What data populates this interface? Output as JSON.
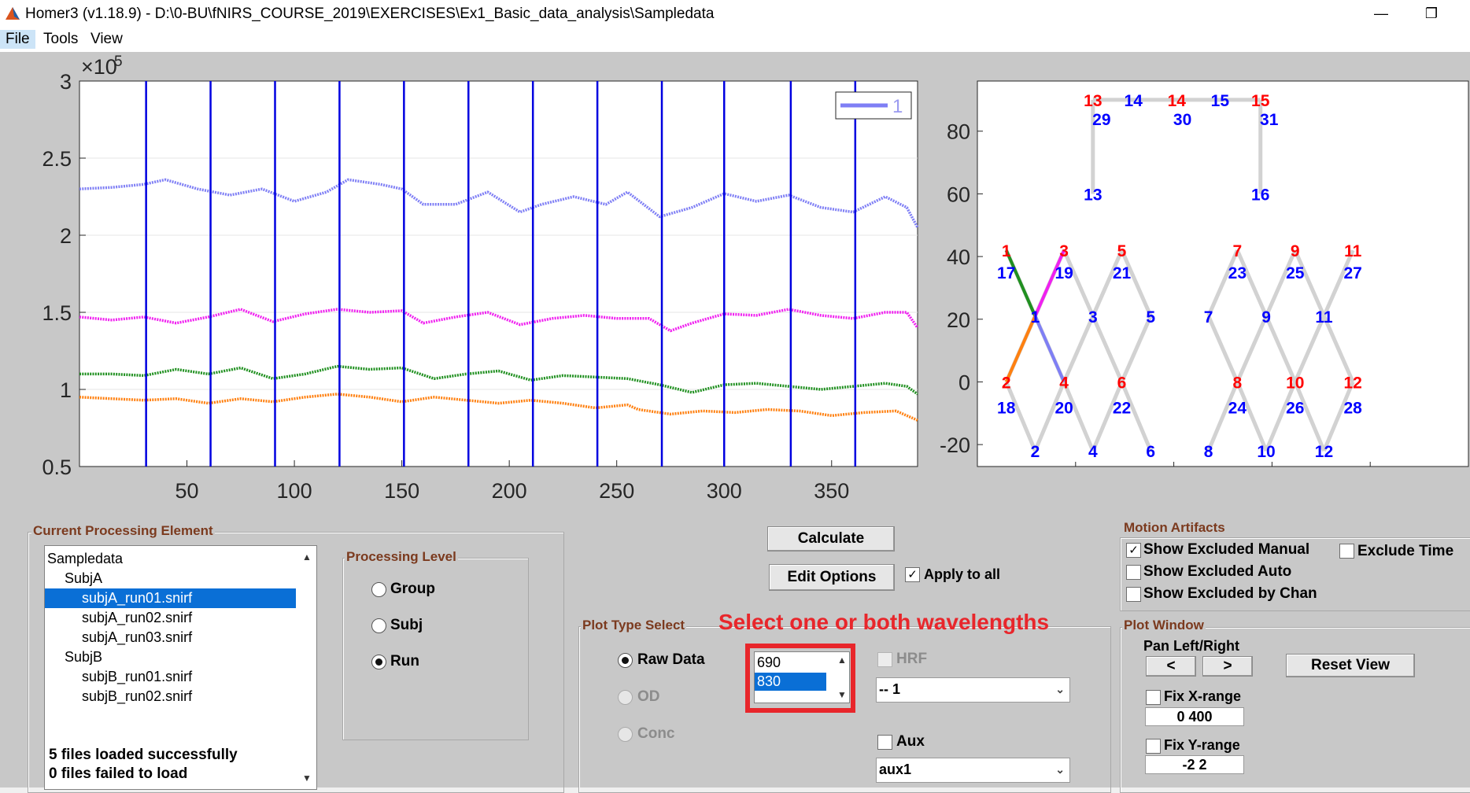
{
  "window": {
    "title": "Homer3 (v1.18.9) - D:\\0-BU\\fNIRS_COURSE_2019\\EXERCISES\\Ex1_Basic_data_analysis\\Sampledata",
    "minimize_icon": "minimize-icon",
    "restore_icon": "restore-icon"
  },
  "menu": {
    "items": [
      "File",
      "Tools",
      "View"
    ]
  },
  "chart_data": [
    {
      "type": "line",
      "title": "",
      "xlabel": "",
      "ylabel": "",
      "exponent_label": "×10",
      "exponent_value": "5",
      "xlim": [
        0,
        390
      ],
      "ylim": [
        0.5,
        3
      ],
      "xticks": [
        50,
        100,
        150,
        200,
        250,
        300,
        350
      ],
      "yticks": [
        0.5,
        1,
        1.5,
        2,
        2.5,
        3
      ],
      "grid": "horizontal",
      "legend": {
        "position": "top-right",
        "entries": [
          "1"
        ]
      },
      "stimulus_markers": [
        31,
        61,
        91,
        121,
        151,
        181,
        211,
        241,
        271,
        300,
        331,
        361
      ],
      "series": [
        {
          "color": "#7f7ff5",
          "x": [
            0,
            15,
            30,
            40,
            55,
            70,
            85,
            100,
            115,
            125,
            140,
            150,
            160,
            175,
            190,
            205,
            215,
            230,
            245,
            255,
            270,
            285,
            300,
            315,
            330,
            345,
            360,
            375,
            385,
            390
          ],
          "values": [
            2.3,
            2.31,
            2.33,
            2.36,
            2.3,
            2.26,
            2.3,
            2.22,
            2.28,
            2.36,
            2.33,
            2.3,
            2.2,
            2.2,
            2.28,
            2.15,
            2.2,
            2.25,
            2.2,
            2.28,
            2.12,
            2.18,
            2.27,
            2.22,
            2.26,
            2.18,
            2.15,
            2.25,
            2.18,
            2.05
          ]
        },
        {
          "color": "#f020f0",
          "x": [
            0,
            15,
            30,
            45,
            60,
            75,
            90,
            105,
            120,
            135,
            150,
            160,
            175,
            190,
            205,
            220,
            235,
            250,
            265,
            275,
            285,
            300,
            315,
            330,
            345,
            360,
            375,
            385,
            390
          ],
          "values": [
            1.47,
            1.45,
            1.47,
            1.43,
            1.47,
            1.52,
            1.44,
            1.49,
            1.52,
            1.5,
            1.51,
            1.43,
            1.47,
            1.5,
            1.42,
            1.46,
            1.48,
            1.46,
            1.46,
            1.38,
            1.43,
            1.49,
            1.48,
            1.52,
            1.48,
            1.46,
            1.5,
            1.5,
            1.4
          ]
        },
        {
          "color": "#209020",
          "x": [
            0,
            15,
            30,
            45,
            60,
            75,
            90,
            105,
            120,
            135,
            150,
            165,
            180,
            195,
            210,
            225,
            240,
            255,
            270,
            285,
            300,
            315,
            330,
            345,
            360,
            375,
            385,
            390
          ],
          "values": [
            1.1,
            1.1,
            1.09,
            1.13,
            1.1,
            1.14,
            1.07,
            1.1,
            1.15,
            1.13,
            1.14,
            1.07,
            1.1,
            1.12,
            1.06,
            1.09,
            1.08,
            1.07,
            1.03,
            0.98,
            1.03,
            1.04,
            1.02,
            1.0,
            1.02,
            1.04,
            1.02,
            0.97
          ]
        },
        {
          "color": "#ff8010",
          "x": [
            0,
            15,
            30,
            45,
            60,
            75,
            90,
            105,
            120,
            135,
            150,
            165,
            180,
            195,
            210,
            225,
            240,
            255,
            260,
            275,
            290,
            305,
            320,
            335,
            350,
            365,
            380,
            390
          ],
          "values": [
            0.95,
            0.94,
            0.93,
            0.94,
            0.91,
            0.94,
            0.92,
            0.95,
            0.97,
            0.95,
            0.92,
            0.95,
            0.93,
            0.91,
            0.93,
            0.91,
            0.88,
            0.9,
            0.87,
            0.84,
            0.86,
            0.85,
            0.87,
            0.86,
            0.83,
            0.85,
            0.86,
            0.8
          ]
        }
      ]
    },
    {
      "type": "scatter",
      "title": "",
      "xlim": [
        -5,
        80
      ],
      "ylim": [
        -27,
        96
      ],
      "yticks": [
        -20,
        0,
        20,
        40,
        60,
        80
      ],
      "source_color": "#ff0000",
      "detector_color": "#0000ff",
      "link_color": "#d2d2d2",
      "sources": [
        {
          "label": "1",
          "x": 0,
          "y": 42
        },
        {
          "label": "2",
          "x": 0,
          "y": 0
        },
        {
          "label": "3",
          "x": 10,
          "y": 42
        },
        {
          "label": "4",
          "x": 10,
          "y": 0
        },
        {
          "label": "5",
          "x": 20,
          "y": 42
        },
        {
          "label": "6",
          "x": 20,
          "y": 0
        },
        {
          "label": "7",
          "x": 40,
          "y": 42
        },
        {
          "label": "8",
          "x": 40,
          "y": 0
        },
        {
          "label": "9",
          "x": 50,
          "y": 42
        },
        {
          "label": "10",
          "x": 50,
          "y": 0
        },
        {
          "label": "11",
          "x": 60,
          "y": 42
        },
        {
          "label": "12",
          "x": 60,
          "y": 0
        },
        {
          "label": "13",
          "x": 15,
          "y": 90
        },
        {
          "label": "14",
          "x": 29.5,
          "y": 90
        },
        {
          "label": "15",
          "x": 44,
          "y": 90
        }
      ],
      "detectors": [
        {
          "label": "1",
          "x": 5,
          "y": 21
        },
        {
          "label": "2",
          "x": 5,
          "y": -22
        },
        {
          "label": "3",
          "x": 15,
          "y": 21
        },
        {
          "label": "4",
          "x": 15,
          "y": -22
        },
        {
          "label": "5",
          "x": 25,
          "y": 21
        },
        {
          "label": "6",
          "x": 25,
          "y": -22
        },
        {
          "label": "7",
          "x": 35,
          "y": 21
        },
        {
          "label": "8",
          "x": 35,
          "y": -22
        },
        {
          "label": "9",
          "x": 45,
          "y": 21
        },
        {
          "label": "10",
          "x": 45,
          "y": -22
        },
        {
          "label": "11",
          "x": 55,
          "y": 21
        },
        {
          "label": "12",
          "x": 55,
          "y": -22
        },
        {
          "label": "13",
          "x": 15,
          "y": 60
        },
        {
          "label": "14",
          "x": 22,
          "y": 90
        },
        {
          "label": "15",
          "x": 37,
          "y": 90
        },
        {
          "label": "16",
          "x": 44,
          "y": 60
        },
        {
          "label": "17",
          "x": 0,
          "y": 35
        },
        {
          "label": "18",
          "x": 0,
          "y": -8
        },
        {
          "label": "19",
          "x": 10,
          "y": 35
        },
        {
          "label": "20",
          "x": 10,
          "y": -8
        },
        {
          "label": "21",
          "x": 20,
          "y": 35
        },
        {
          "label": "22",
          "x": 20,
          "y": -8
        },
        {
          "label": "23",
          "x": 40,
          "y": 35
        },
        {
          "label": "24",
          "x": 40,
          "y": -8
        },
        {
          "label": "25",
          "x": 50,
          "y": 35
        },
        {
          "label": "26",
          "x": 50,
          "y": -8
        },
        {
          "label": "27",
          "x": 60,
          "y": 35
        },
        {
          "label": "28",
          "x": 60,
          "y": -8
        },
        {
          "label": "29",
          "x": 16.5,
          "y": 84
        },
        {
          "label": "30",
          "x": 30.5,
          "y": 84
        },
        {
          "label": "31",
          "x": 45.5,
          "y": 84
        }
      ],
      "links": [
        [
          0,
          42,
          5,
          21
        ],
        [
          0,
          0,
          5,
          21
        ],
        [
          10,
          42,
          5,
          21
        ],
        [
          10,
          0,
          5,
          21
        ],
        [
          0,
          0,
          5,
          -22
        ],
        [
          10,
          0,
          5,
          -22
        ],
        [
          10,
          42,
          15,
          21
        ],
        [
          10,
          0,
          15,
          21
        ],
        [
          20,
          42,
          15,
          21
        ],
        [
          20,
          0,
          15,
          21
        ],
        [
          10,
          0,
          15,
          -22
        ],
        [
          20,
          0,
          15,
          -22
        ],
        [
          20,
          42,
          25,
          21
        ],
        [
          20,
          0,
          25,
          21
        ],
        [
          20,
          0,
          25,
          -22
        ],
        [
          40,
          42,
          35,
          21
        ],
        [
          40,
          0,
          35,
          21
        ],
        [
          40,
          0,
          35,
          -22
        ],
        [
          40,
          42,
          45,
          21
        ],
        [
          40,
          0,
          45,
          21
        ],
        [
          50,
          42,
          45,
          21
        ],
        [
          50,
          0,
          45,
          21
        ],
        [
          40,
          0,
          45,
          -22
        ],
        [
          50,
          0,
          45,
          -22
        ],
        [
          50,
          42,
          55,
          21
        ],
        [
          50,
          0,
          55,
          21
        ],
        [
          60,
          42,
          55,
          21
        ],
        [
          60,
          0,
          55,
          21
        ],
        [
          50,
          0,
          55,
          -22
        ],
        [
          60,
          0,
          55,
          -22
        ],
        [
          15,
          90,
          44,
          90
        ],
        [
          15,
          90,
          15,
          60
        ],
        [
          44,
          90,
          44,
          60
        ]
      ],
      "highlighted_links": [
        {
          "from": [
            0,
            42
          ],
          "to": [
            5,
            21
          ],
          "color": "#209020"
        },
        {
          "from": [
            10,
            42
          ],
          "to": [
            5,
            21
          ],
          "color": "#f020f0"
        },
        {
          "from": [
            0,
            0
          ],
          "to": [
            5,
            21
          ],
          "color": "#ff8010"
        },
        {
          "from": [
            10,
            0
          ],
          "to": [
            5,
            21
          ],
          "color": "#7f7ff5"
        }
      ]
    }
  ],
  "current_element": {
    "title": "Current Processing Element",
    "tree": [
      {
        "label": "Sampledata",
        "indent": 0,
        "selected": false
      },
      {
        "label": "SubjA",
        "indent": 1,
        "selected": false
      },
      {
        "label": "subjA_run01.snirf",
        "indent": 2,
        "selected": true
      },
      {
        "label": "subjA_run02.snirf",
        "indent": 2,
        "selected": false
      },
      {
        "label": "subjA_run03.snirf",
        "indent": 2,
        "selected": false
      },
      {
        "label": "SubjB",
        "indent": 1,
        "selected": false
      },
      {
        "label": "subjB_run01.snirf",
        "indent": 2,
        "selected": false
      },
      {
        "label": "subjB_run02.snirf",
        "indent": 2,
        "selected": false
      }
    ],
    "status_loaded": "5 files loaded successfully",
    "status_failed": "0 files failed to load"
  },
  "processing_level": {
    "title": "Processing Level",
    "options": [
      {
        "label": "Group",
        "selected": false
      },
      {
        "label": "Subj",
        "selected": false
      },
      {
        "label": "Run",
        "selected": true
      }
    ]
  },
  "buttons": {
    "calculate": "Calculate",
    "edit_options": "Edit Options",
    "apply_to_all": "Apply to all",
    "apply_to_all_checked": true
  },
  "plot_type": {
    "title": "Plot Type Select",
    "options": [
      {
        "label": "Raw Data",
        "selected": true,
        "enabled": true
      },
      {
        "label": "OD",
        "selected": false,
        "enabled": false
      },
      {
        "label": "Conc",
        "selected": false,
        "enabled": false
      }
    ],
    "wavelengths": [
      {
        "label": "690",
        "selected": false
      },
      {
        "label": "830",
        "selected": true
      }
    ],
    "annotation": "Select one or both wavelengths",
    "hrf_label": "HRF",
    "hrf_value": "-- 1",
    "aux_label": "Aux",
    "aux_value": "aux1"
  },
  "motion_artifacts": {
    "title": "Motion Artifacts",
    "show_excluded_manual": "Show Excluded Manual",
    "show_excluded_manual_checked": true,
    "show_excluded_auto": "Show Excluded Auto",
    "show_excluded_by_chan": "Show Excluded by Chan",
    "exclude_time": "Exclude Time"
  },
  "plot_window": {
    "title": "Plot Window",
    "pan_label": "Pan Left/Right",
    "pan_left": "<",
    "pan_right": ">",
    "reset_view": "Reset View",
    "fix_xrange": "Fix X-range",
    "xrange_value": "0 400",
    "fix_yrange": "Fix Y-range",
    "yrange_value": "-2 2"
  }
}
